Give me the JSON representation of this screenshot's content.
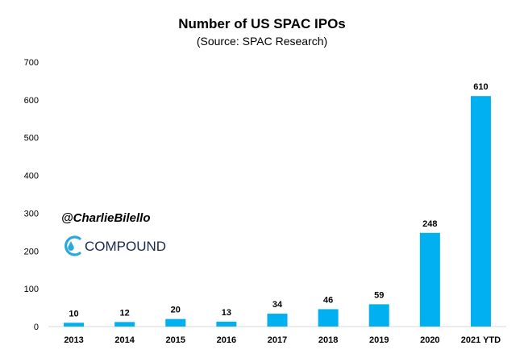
{
  "chart_data": {
    "type": "bar",
    "title": "Number of US SPAC IPOs",
    "subtitle": "(Source: SPAC Research)",
    "categories": [
      "2013",
      "2014",
      "2015",
      "2016",
      "2017",
      "2018",
      "2019",
      "2020",
      "2021 YTD"
    ],
    "values": [
      10,
      12,
      20,
      13,
      34,
      46,
      59,
      248,
      610
    ],
    "data_labels": [
      "10",
      "12",
      "20",
      "13",
      "34",
      "46",
      "59",
      "248",
      "610"
    ],
    "ylim": [
      0,
      700
    ],
    "yticks": [
      "0",
      "100",
      "200",
      "300",
      "400",
      "500",
      "600",
      "700"
    ],
    "grid": false,
    "bar_color": "#00b0f0",
    "xlabel": "",
    "ylabel": ""
  },
  "watermark": {
    "handle": "@CharlieBilello",
    "brand": "COMPOUND",
    "logo_color": "#29a8e0"
  }
}
